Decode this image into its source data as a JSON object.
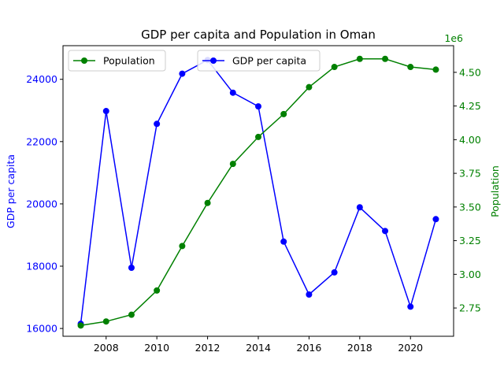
{
  "chart_data": {
    "type": "line",
    "title": "GDP per capita and Population in Oman",
    "x": [
      2007,
      2008,
      2009,
      2010,
      2011,
      2012,
      2013,
      2014,
      2015,
      2016,
      2017,
      2018,
      2019,
      2020,
      2021
    ],
    "xticks": [
      "2008",
      "2010",
      "2012",
      "2014",
      "2016",
      "2018",
      "2020"
    ],
    "xlim": [
      2006.3,
      2021.7
    ],
    "series": [
      {
        "name": "GDP per capita",
        "axis": "left",
        "color": "#0000ff",
        "values": [
          16150,
          22980,
          17950,
          22570,
          24180,
          24620,
          23570,
          23130,
          18790,
          17090,
          17800,
          19890,
          19130,
          16700,
          19510
        ]
      },
      {
        "name": "Population",
        "axis": "right",
        "color": "#008000",
        "values": [
          2620000,
          2650000,
          2700000,
          2880000,
          3210000,
          3530000,
          3820000,
          4020000,
          4190000,
          4390000,
          4540000,
          4600000,
          4600000,
          4540000,
          4520000
        ]
      }
    ],
    "ylabel_left": "GDP per capita",
    "ylim_left": [
      15750,
      25080
    ],
    "yticks_left": [
      "16000",
      "18000",
      "20000",
      "22000",
      "24000"
    ],
    "ylabel_right": "Population",
    "ylim_right": [
      2540000,
      4698000
    ],
    "yticks_right": [
      "2.75",
      "3.00",
      "3.25",
      "3.50",
      "3.75",
      "4.00",
      "4.25",
      "4.50"
    ],
    "offset_right": "1e6",
    "grid": false,
    "legend": [
      {
        "series": "Population",
        "placement": "upper-left"
      },
      {
        "series": "GDP per capita",
        "placement": "upper-center"
      }
    ]
  }
}
